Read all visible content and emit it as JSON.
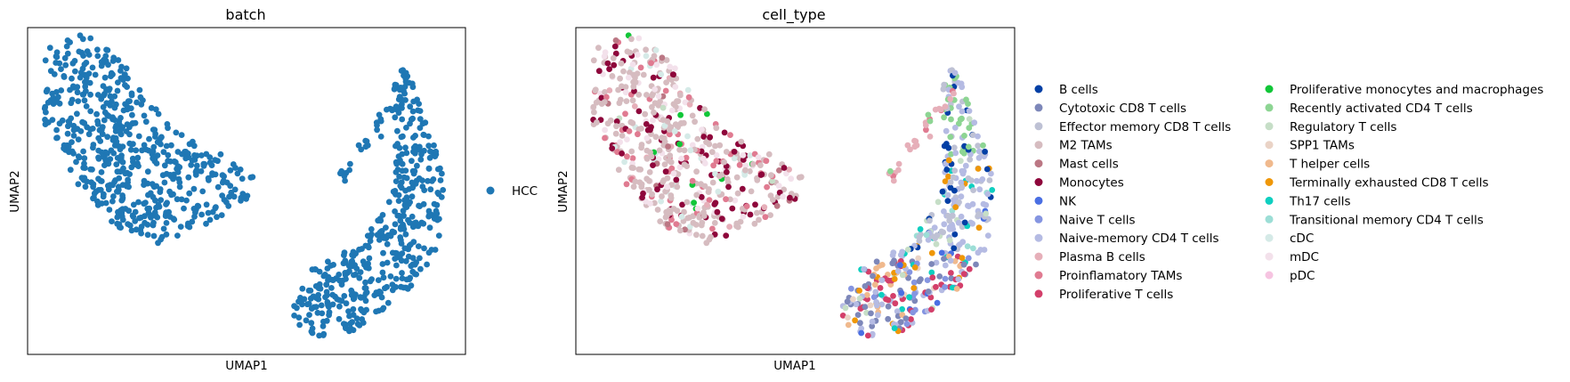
{
  "chart_data": [
    {
      "type": "scatter",
      "title": "batch",
      "xlabel": "UMAP1",
      "ylabel": "UMAP2",
      "xlim": [
        0,
        100
      ],
      "ylim": [
        0,
        100
      ],
      "grid": false,
      "ticks": false,
      "legend_position": "right",
      "legend": [
        {
          "name": "HCC",
          "color": "#1f77b4"
        }
      ],
      "series": [
        {
          "name": "HCC",
          "color": "#1f77b4",
          "count": 950
        }
      ]
    },
    {
      "type": "scatter",
      "title": "cell_type",
      "xlabel": "UMAP1",
      "ylabel": "UMAP2",
      "xlim": [
        0,
        100
      ],
      "ylim": [
        0,
        100
      ],
      "grid": false,
      "ticks": false,
      "legend_position": "right",
      "legend_columns": 2,
      "legend": [
        {
          "name": "B cells",
          "color": "#023fa5"
        },
        {
          "name": "Cytotoxic CD8 T cells",
          "color": "#7d87b9"
        },
        {
          "name": "Effector memory CD8 T cells",
          "color": "#bec1d4"
        },
        {
          "name": "M2 TAMs",
          "color": "#d6bcc0"
        },
        {
          "name": "Mast cells",
          "color": "#bb7784"
        },
        {
          "name": "Monocytes",
          "color": "#8e063b"
        },
        {
          "name": "NK",
          "color": "#4a6fe3"
        },
        {
          "name": "Naive T cells",
          "color": "#8595e1"
        },
        {
          "name": "Naive-memory CD4 T cells",
          "color": "#b5bbe3"
        },
        {
          "name": "Plasma B cells",
          "color": "#e6afb9"
        },
        {
          "name": "Proinflamatory TAMs",
          "color": "#e07b91"
        },
        {
          "name": "Proliferative T cells",
          "color": "#d33f6a"
        },
        {
          "name": "Proliferative monocytes and macrophages",
          "color": "#11c638"
        },
        {
          "name": "Recently activated CD4 T cells",
          "color": "#8dd593"
        },
        {
          "name": "Regulatory T cells",
          "color": "#c6dec7"
        },
        {
          "name": "SPP1 TAMs",
          "color": "#ead3c6"
        },
        {
          "name": "T helper cells",
          "color": "#f0b98d"
        },
        {
          "name": "Terminally exhausted CD8 T cells",
          "color": "#ef9708"
        },
        {
          "name": "Th17 cells",
          "color": "#0fcfc0"
        },
        {
          "name": "Transitional memory CD4 T cells",
          "color": "#9cded6"
        },
        {
          "name": "cDC",
          "color": "#d5eae7"
        },
        {
          "name": "mDC",
          "color": "#f3e1eb"
        },
        {
          "name": "pDC",
          "color": "#f6c4e1"
        }
      ]
    }
  ]
}
